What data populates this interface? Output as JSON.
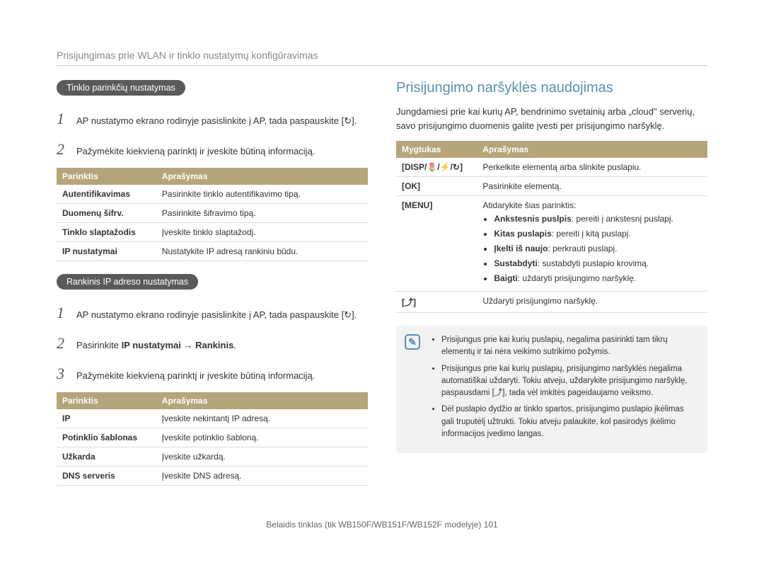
{
  "header": "Prisijungimas prie WLAN ir tinklo nustatymų konfigūravimas",
  "left": {
    "pill1": "Tinklo parinkčių nustatymas",
    "step1": "AP nustatymo ekrano rodinyje pasislinkite į AP, tada paspauskite [↻].",
    "step2": "Pažymėkite kiekvieną parinktį ir įveskite būtiną informaciją.",
    "table1": {
      "h0": "Parinktis",
      "h1": "Aprašymas",
      "rows": [
        {
          "k": "Autentifikavimas",
          "v": "Pasirinkite tinklo autentifikavimo tipą."
        },
        {
          "k": "Duomenų šifrv.",
          "v": "Pasirinkite šifravimo tipą."
        },
        {
          "k": "Tinklo slaptažodis",
          "v": "Įveskite tinklo slaptažodį."
        },
        {
          "k": "IP nustatymai",
          "v": "Nustatykite IP adresą rankiniu būdu."
        }
      ]
    },
    "pill2": "Rankinis IP adreso nustatymas",
    "step2_1": "AP nustatymo ekrano rodinyje pasislinkite į AP, tada paspauskite [↻].",
    "step2_2": "Pasirinkite IP nustatymai → Rankinis.",
    "step2_3": "Pažymėkite kiekvieną parinktį ir įveskite būtiną informaciją.",
    "table2": {
      "h0": "Parinktis",
      "h1": "Aprašymas",
      "rows": [
        {
          "k": "IP",
          "v": "Įveskite nekintantį IP adresą."
        },
        {
          "k": "Potinklio šablonas",
          "v": "Įveskite potinklio šabloną."
        },
        {
          "k": "Užkarda",
          "v": "Įveskite užkardą."
        },
        {
          "k": "DNS serveris",
          "v": "Įveskite DNS adresą."
        }
      ]
    }
  },
  "right": {
    "title": "Prisijungimo naršyklės naudojimas",
    "intro": "Jungdamiesi prie kai kurių AP, bendrinimo svetainių arba „cloud\" serverių, savo prisijungimo duomenis galite įvesti per prisijungimo naršyklę.",
    "table": {
      "h0": "Mygtukas",
      "h1": "Aprašymas",
      "row0k": "[DISP/🌷/⚡/↻]",
      "row0v": "Perkelkite elementą arba slinkite puslapiu.",
      "row1k": "[OK]",
      "row1v": "Pasirinkite elementą.",
      "row2k": "[MENU]",
      "row2intro": "Atidarykite šias parinktis:",
      "row2items": [
        {
          "b": "Ankstesnis puslpis",
          "t": ": pereiti į ankstesnį puslapį."
        },
        {
          "b": "Kitas puslapis",
          "t": ": pereiti į kitą puslapį."
        },
        {
          "b": "Įkelti iš naujo",
          "t": ": perkrauti puslapį."
        },
        {
          "b": "Sustabdyti",
          "t": ": sustabdyti puslapio krovimą."
        },
        {
          "b": "Baigti",
          "t": ": uždaryti prisijungimo naršyklę."
        }
      ],
      "row3k": "[⤴]",
      "row3v": "Uždaryti prisijungimo naršyklę."
    },
    "notes": [
      "Prisijungus prie kai kurių puslapių, negalima pasirinkti tam tikrų elementų ir tai nėra veikimo sutrikimo požymis.",
      "Prisijungus prie kai kurių puslapių, prisijungimo naršyklės negalima automatiškai uždaryti. Tokiu atveju, uždarykite prisijungimo naršyklę, paspausdami [⤴], tada vėl imkitės pageidaujamo veiksmo.",
      "Dėl puslapio dydžio ar tinklo spartos, prisijungimo puslapio įkėlimas gali truputėlį užtrukti. Tokiu atveju palaukite, kol pasirodys įkėlimo informacijos įvedimo langas."
    ]
  },
  "footer": "Belaidis tinklas  (tik WB150F/WB151F/WB152F modelyje)   101"
}
